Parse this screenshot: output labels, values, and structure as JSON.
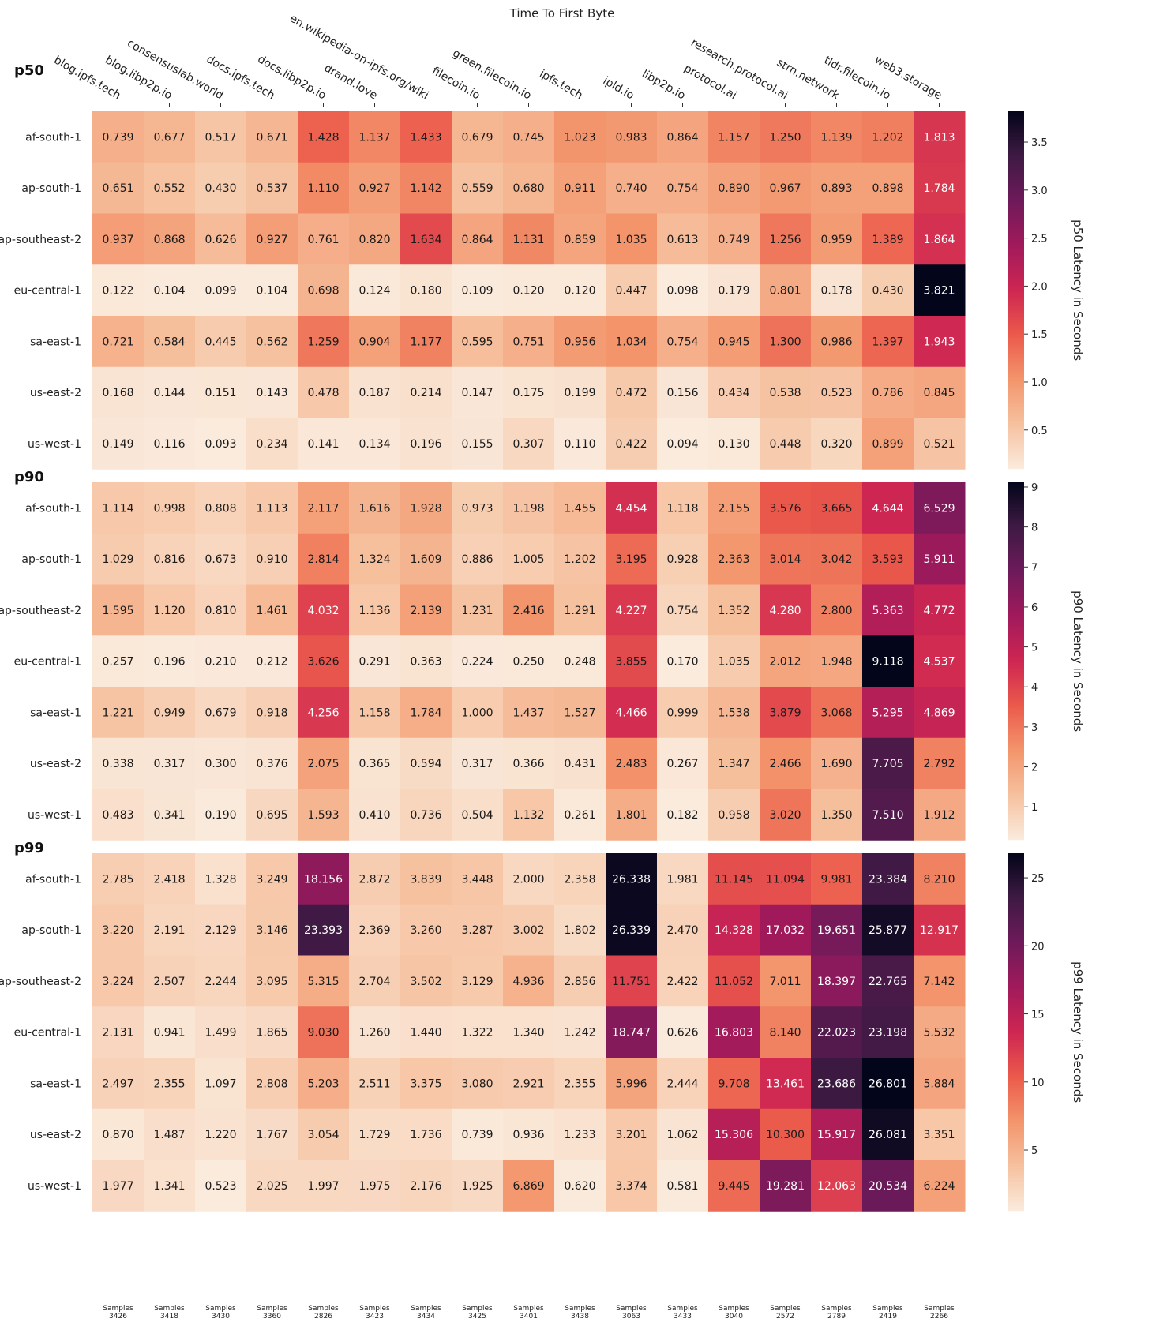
{
  "chart_data": {
    "type": "heatmap",
    "title": "Time To First Byte",
    "columns": [
      "blog.ipfs.tech",
      "blog.libp2p.io",
      "consensuslab.world",
      "docs.ipfs.tech",
      "docs.libp2p.io",
      "drand.love",
      "en.wikipedia-on-ipfs.org/wiki",
      "filecoin.io",
      "green.filecoin.io",
      "ipfs.tech",
      "ipld.io",
      "libp2p.io",
      "protocol.ai",
      "research.protocol.ai",
      "strn.network",
      "tldr.filecoin.io",
      "web3.storage"
    ],
    "rows": [
      "af-south-1",
      "ap-south-1",
      "ap-southeast-2",
      "eu-central-1",
      "sa-east-1",
      "us-east-2",
      "us-west-1"
    ],
    "sample_label": "Samples",
    "samples": [
      3426,
      3418,
      3430,
      3360,
      2826,
      3423,
      3434,
      3425,
      3401,
      3438,
      3063,
      3433,
      3040,
      2572,
      2789,
      2419,
      2266
    ],
    "panels": [
      {
        "name": "p50",
        "colorbar_label": "p50 Latency in Seconds",
        "colorbar_ticks": [
          0.5,
          1.0,
          1.5,
          2.0,
          2.5,
          3.0,
          3.5
        ],
        "vmin": 0.093,
        "vmax": 3.821,
        "values": [
          [
            0.739,
            0.677,
            0.517,
            0.671,
            1.428,
            1.137,
            1.433,
            0.679,
            0.745,
            1.023,
            0.983,
            0.864,
            1.157,
            1.25,
            1.139,
            1.202,
            1.813
          ],
          [
            0.651,
            0.552,
            0.43,
            0.537,
            1.11,
            0.927,
            1.142,
            0.559,
            0.68,
            0.911,
            0.74,
            0.754,
            0.89,
            0.967,
            0.893,
            0.898,
            1.784
          ],
          [
            0.937,
            0.868,
            0.626,
            0.927,
            0.761,
            0.82,
            1.634,
            0.864,
            1.131,
            0.859,
            1.035,
            0.613,
            0.749,
            1.256,
            0.959,
            1.389,
            1.864
          ],
          [
            0.122,
            0.104,
            0.099,
            0.104,
            0.698,
            0.124,
            0.18,
            0.109,
            0.12,
            0.12,
            0.447,
            0.098,
            0.179,
            0.801,
            0.178,
            0.43,
            3.821
          ],
          [
            0.721,
            0.584,
            0.445,
            0.562,
            1.259,
            0.904,
            1.177,
            0.595,
            0.751,
            0.956,
            1.034,
            0.754,
            0.945,
            1.3,
            0.986,
            1.397,
            1.943
          ],
          [
            0.168,
            0.144,
            0.151,
            0.143,
            0.478,
            0.187,
            0.214,
            0.147,
            0.175,
            0.199,
            0.472,
            0.156,
            0.434,
            0.538,
            0.523,
            0.786,
            0.845
          ],
          [
            0.149,
            0.116,
            0.093,
            0.234,
            0.141,
            0.134,
            0.196,
            0.155,
            0.307,
            0.11,
            0.422,
            0.094,
            0.13,
            0.448,
            0.32,
            0.899,
            0.521
          ]
        ]
      },
      {
        "name": "p90",
        "colorbar_label": "p90 Latency in Seconds",
        "colorbar_ticks": [
          1,
          2,
          3,
          4,
          5,
          6,
          7,
          8,
          9
        ],
        "vmin": 0.17,
        "vmax": 9.118,
        "values": [
          [
            1.114,
            0.998,
            0.808,
            1.113,
            2.117,
            1.616,
            1.928,
            0.973,
            1.198,
            1.455,
            4.454,
            1.118,
            2.155,
            3.576,
            3.665,
            4.644,
            6.529
          ],
          [
            1.029,
            0.816,
            0.673,
            0.91,
            2.814,
            1.324,
            1.609,
            0.886,
            1.005,
            1.202,
            3.195,
            0.928,
            2.363,
            3.014,
            3.042,
            3.593,
            5.911
          ],
          [
            1.595,
            1.12,
            0.81,
            1.461,
            4.032,
            1.136,
            2.139,
            1.231,
            2.416,
            1.291,
            4.227,
            0.754,
            1.352,
            4.28,
            2.8,
            5.363,
            4.772
          ],
          [
            0.257,
            0.196,
            0.21,
            0.212,
            3.626,
            0.291,
            0.363,
            0.224,
            0.25,
            0.248,
            3.855,
            0.17,
            1.035,
            2.012,
            1.948,
            9.118,
            4.537
          ],
          [
            1.221,
            0.949,
            0.679,
            0.918,
            4.256,
            1.158,
            1.784,
            1.0,
            1.437,
            1.527,
            4.466,
            0.999,
            1.538,
            3.879,
            3.068,
            5.295,
            4.869
          ],
          [
            0.338,
            0.317,
            0.3,
            0.376,
            2.075,
            0.365,
            0.594,
            0.317,
            0.366,
            0.431,
            2.483,
            0.267,
            1.347,
            2.466,
            1.69,
            7.705,
            2.792
          ],
          [
            0.483,
            0.341,
            0.19,
            0.695,
            1.593,
            0.41,
            0.736,
            0.504,
            1.132,
            0.261,
            1.801,
            0.182,
            0.958,
            3.02,
            1.35,
            7.51,
            1.912
          ]
        ]
      },
      {
        "name": "p99",
        "colorbar_label": "p99 Latency in Seconds",
        "colorbar_ticks": [
          5,
          10,
          15,
          20,
          25
        ],
        "vmin": 0.523,
        "vmax": 26.801,
        "values": [
          [
            2.785,
            2.418,
            1.328,
            3.249,
            18.156,
            2.872,
            3.839,
            3.448,
            2.0,
            2.358,
            26.338,
            1.981,
            11.145,
            11.094,
            9.981,
            23.384,
            8.21
          ],
          [
            3.22,
            2.191,
            2.129,
            3.146,
            23.393,
            2.369,
            3.26,
            3.287,
            3.002,
            1.802,
            26.339,
            2.47,
            14.328,
            17.032,
            19.651,
            25.877,
            12.917
          ],
          [
            3.224,
            2.507,
            2.244,
            3.095,
            5.315,
            2.704,
            3.502,
            3.129,
            4.936,
            2.856,
            11.751,
            2.422,
            11.052,
            7.011,
            18.397,
            22.765,
            7.142
          ],
          [
            2.131,
            0.941,
            1.499,
            1.865,
            9.03,
            1.26,
            1.44,
            1.322,
            1.34,
            1.242,
            18.747,
            0.626,
            16.803,
            8.14,
            22.023,
            23.198,
            5.532
          ],
          [
            2.497,
            2.355,
            1.097,
            2.808,
            5.203,
            2.511,
            3.375,
            3.08,
            2.921,
            2.355,
            5.996,
            2.444,
            9.708,
            13.461,
            23.686,
            26.801,
            5.884
          ],
          [
            0.87,
            1.487,
            1.22,
            1.767,
            3.054,
            1.729,
            1.736,
            0.739,
            0.936,
            1.233,
            3.201,
            1.062,
            15.306,
            10.3,
            15.917,
            26.081,
            3.351
          ],
          [
            1.977,
            1.341,
            0.523,
            2.025,
            1.997,
            1.975,
            2.176,
            1.925,
            6.869,
            0.62,
            3.374,
            0.581,
            9.445,
            19.281,
            12.063,
            20.534,
            6.224
          ]
        ]
      }
    ],
    "colormap": [
      "#faebdd",
      "#f6c19f",
      "#f3956c",
      "#eb5a4b",
      "#ce2652",
      "#a11a5b",
      "#6e1a5a",
      "#3e1a43",
      "#03051a"
    ]
  }
}
